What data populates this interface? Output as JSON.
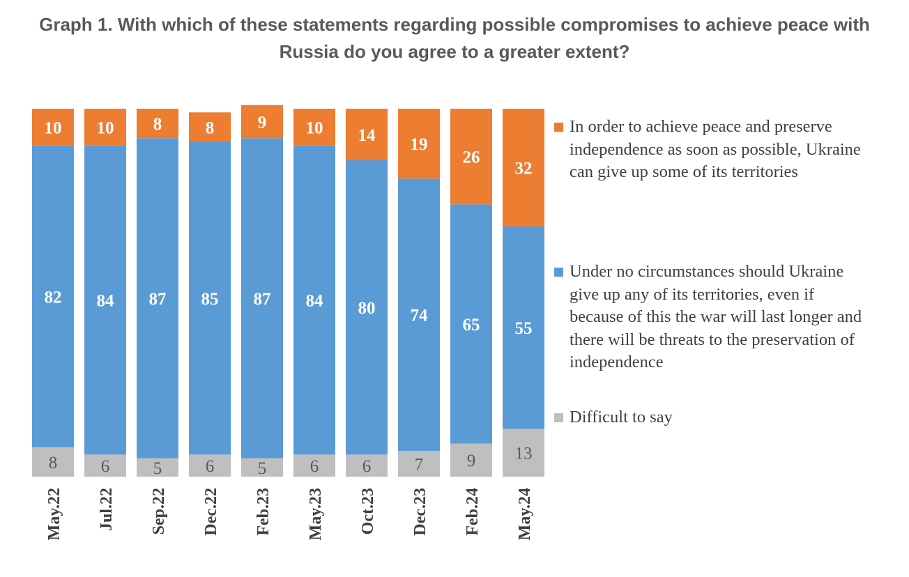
{
  "chart_data": {
    "type": "bar",
    "stacked": true,
    "percent": true,
    "title": "Graph 1. With which of these statements regarding possible compromises to achieve peace with Russia do you agree to a greater extent?",
    "categories": [
      "May.22",
      "Jul.22",
      "Sep.22",
      "Dec.22",
      "Feb.23",
      "May.23",
      "Oct.23",
      "Dec.23",
      "Feb.24",
      "May.24"
    ],
    "series": [
      {
        "name": "Difficult to say",
        "color": "#bfbfbf",
        "values": [
          8,
          6,
          5,
          6,
          5,
          6,
          6,
          7,
          9,
          13
        ]
      },
      {
        "name": "Under no circumstances should Ukraine give up any of its territories, even if because of this the war will last longer and there will be threats to the preservation of independence",
        "color": "#5b9bd5",
        "values": [
          82,
          84,
          87,
          85,
          87,
          84,
          80,
          74,
          65,
          55
        ]
      },
      {
        "name": "In order to achieve peace and preserve independence as soon as possible, Ukraine can give up some of its territories",
        "color": "#ed7d31",
        "values": [
          10,
          10,
          8,
          8,
          9,
          10,
          14,
          19,
          26,
          32
        ]
      }
    ],
    "ylim": [
      0,
      100
    ],
    "grid": false,
    "legend_position": "right"
  }
}
